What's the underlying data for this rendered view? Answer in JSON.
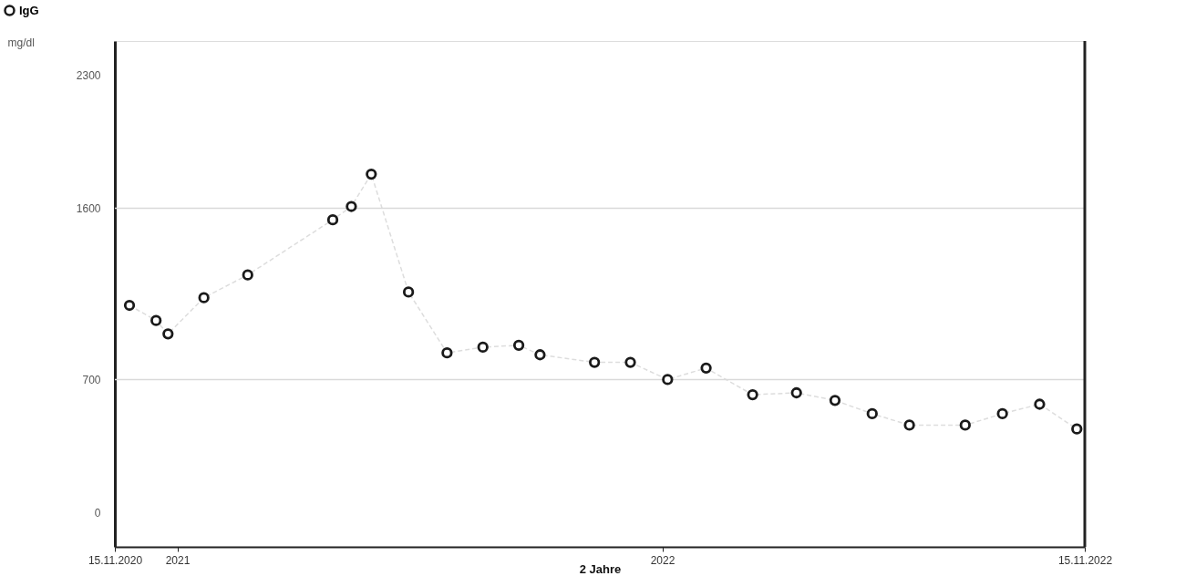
{
  "chart_data": {
    "type": "line",
    "xlabel": "2 Jahre",
    "ylabel": "mg/dl",
    "x": [
      "2020-11-26",
      "2020-12-16",
      "2020-12-25",
      "2021-01-21",
      "2021-02-23",
      "2021-04-28",
      "2021-05-12",
      "2021-05-27",
      "2021-06-24",
      "2021-07-23",
      "2021-08-19",
      "2021-09-15",
      "2021-10-01",
      "2021-11-11",
      "2021-12-08",
      "2022-01-05",
      "2022-02-03",
      "2022-03-10",
      "2022-04-12",
      "2022-05-11",
      "2022-06-08",
      "2022-07-06",
      "2022-08-17",
      "2022-09-14",
      "2022-10-12",
      "2022-11-09"
    ],
    "series": [
      {
        "name": "IgG",
        "color": "#1a1a1a",
        "values": [
          1090,
          1010,
          940,
          1130,
          1250,
          1540,
          1610,
          1780,
          1160,
          840,
          870,
          880,
          830,
          790,
          790,
          700,
          760,
          620,
          630,
          590,
          520,
          460,
          460,
          520,
          570,
          440
        ]
      }
    ],
    "xlim": [
      "2020-11-15",
      "2022-11-15"
    ],
    "xticks": [
      {
        "value": "2020-11-15",
        "label": "15.11.2020"
      },
      {
        "value": "2021-01-01",
        "label": "2021"
      },
      {
        "value": "2022-01-01",
        "label": "2022"
      },
      {
        "value": "2022-11-15",
        "label": "15.11.2022"
      }
    ],
    "ylim": [
      -180,
      2480
    ],
    "yticks": [
      0,
      700,
      1600,
      2300
    ],
    "ref_lines": [
      {
        "axis": "y",
        "value": 700,
        "color": "#d9d9d9"
      },
      {
        "axis": "y",
        "value": 1600,
        "color": "#d9d9d9"
      }
    ],
    "marker": "circle",
    "line_style": "dashed",
    "legend": "top left",
    "grid": false
  }
}
